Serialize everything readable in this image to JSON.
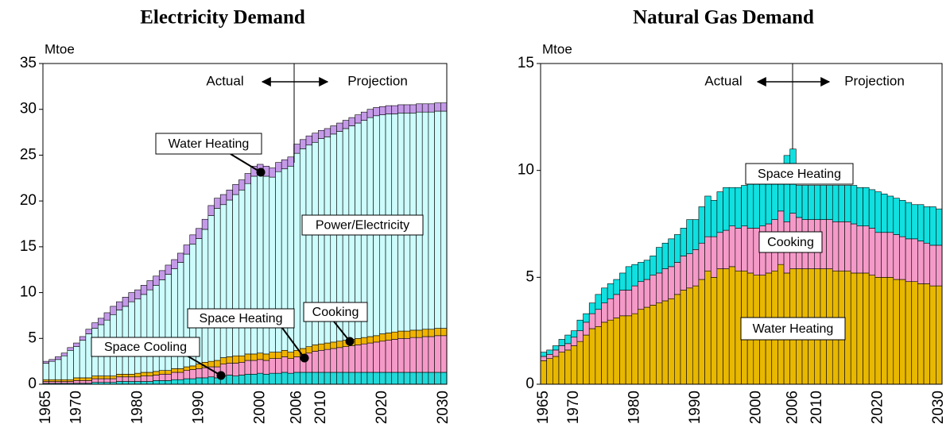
{
  "chart_data": [
    {
      "type": "bar",
      "stacked": true,
      "title": "Electricity Demand",
      "y_label": "Mtoe",
      "annotations": [
        "Actual",
        "Projection"
      ],
      "categories": [
        "1965",
        null,
        null,
        null,
        null,
        "1970",
        null,
        null,
        null,
        null,
        null,
        null,
        null,
        null,
        null,
        "1980",
        null,
        null,
        null,
        null,
        null,
        null,
        null,
        null,
        null,
        "1990",
        null,
        null,
        null,
        null,
        null,
        null,
        null,
        null,
        null,
        "2000",
        null,
        null,
        null,
        null,
        null,
        "2006",
        null,
        null,
        null,
        "2010",
        null,
        null,
        null,
        null,
        null,
        null,
        null,
        null,
        null,
        "2020",
        null,
        null,
        null,
        null,
        null,
        null,
        null,
        null,
        null,
        "2030"
      ],
      "ylim": [
        0,
        35
      ],
      "yticks": [
        0,
        5,
        10,
        15,
        20,
        25,
        30,
        35
      ],
      "series": [
        {
          "name": "Space Cooling",
          "color": "#22d8d8",
          "values": [
            0.1,
            0.1,
            0.1,
            0.1,
            0.1,
            0.1,
            0.1,
            0.1,
            0.2,
            0.2,
            0.2,
            0.2,
            0.3,
            0.3,
            0.3,
            0.3,
            0.3,
            0.3,
            0.4,
            0.4,
            0.4,
            0.5,
            0.5,
            0.6,
            0.6,
            0.7,
            0.7,
            0.8,
            0.7,
            0.9,
            1.0,
            0.9,
            1.0,
            1.1,
            1.1,
            1.2,
            1.1,
            1.2,
            1.2,
            1.3,
            1.2,
            1.3,
            1.3,
            1.3,
            1.3,
            1.3,
            1.3,
            1.3,
            1.3,
            1.3,
            1.3,
            1.3,
            1.3,
            1.3,
            1.3,
            1.3,
            1.3,
            1.3,
            1.3,
            1.3,
            1.3,
            1.3,
            1.3,
            1.3,
            1.3,
            1.3
          ]
        },
        {
          "name": "Space Heating",
          "color": "#f59ac8",
          "values": [
            0.2,
            0.2,
            0.2,
            0.2,
            0.2,
            0.3,
            0.3,
            0.3,
            0.4,
            0.4,
            0.4,
            0.4,
            0.5,
            0.5,
            0.5,
            0.5,
            0.6,
            0.6,
            0.6,
            0.7,
            0.7,
            0.8,
            0.8,
            0.9,
            1.0,
            1.0,
            1.1,
            1.1,
            1.2,
            1.3,
            1.3,
            1.4,
            1.4,
            1.5,
            1.5,
            1.5,
            1.5,
            1.6,
            1.6,
            1.7,
            1.6,
            1.7,
            1.9,
            2.1,
            2.3,
            2.4,
            2.5,
            2.6,
            2.7,
            2.8,
            2.9,
            3.0,
            3.1,
            3.2,
            3.3,
            3.4,
            3.5,
            3.6,
            3.7,
            3.7,
            3.8,
            3.8,
            3.9,
            3.9,
            4.0,
            4.0
          ]
        },
        {
          "name": "Cooking",
          "color": "#f0b400",
          "values": [
            0.2,
            0.2,
            0.2,
            0.2,
            0.2,
            0.3,
            0.3,
            0.3,
            0.3,
            0.3,
            0.3,
            0.3,
            0.3,
            0.3,
            0.3,
            0.4,
            0.4,
            0.4,
            0.4,
            0.4,
            0.4,
            0.4,
            0.4,
            0.4,
            0.4,
            0.5,
            0.6,
            0.6,
            0.7,
            0.7,
            0.7,
            0.8,
            0.7,
            0.7,
            0.7,
            0.7,
            0.7,
            0.7,
            0.7,
            0.7,
            0.7,
            0.7,
            0.7,
            0.7,
            0.7,
            0.7,
            0.7,
            0.7,
            0.7,
            0.7,
            0.7,
            0.7,
            0.7,
            0.7,
            0.7,
            0.8,
            0.8,
            0.8,
            0.8,
            0.8,
            0.8,
            0.8,
            0.8,
            0.8,
            0.8,
            0.8
          ]
        },
        {
          "name": "Power/Electricity",
          "color": "#ccfcfc",
          "values": [
            1.8,
            2.0,
            2.2,
            2.6,
            3.2,
            3.4,
            4.1,
            4.8,
            5.2,
            5.6,
            6.1,
            6.7,
            7.0,
            7.4,
            7.9,
            8.1,
            8.5,
            9.0,
            9.4,
            9.9,
            10.5,
            10.9,
            11.6,
            12.3,
            13.3,
            13.7,
            14.5,
            15.9,
            16.6,
            16.7,
            17.1,
            17.6,
            18.1,
            18.6,
            19.4,
            19.5,
            19.4,
            19.1,
            19.7,
            19.8,
            20.3,
            21.5,
            21.8,
            22.0,
            22.1,
            22.4,
            22.5,
            22.7,
            22.9,
            23.1,
            23.3,
            23.5,
            23.7,
            23.9,
            24.0,
            23.9,
            23.9,
            23.8,
            23.8,
            23.8,
            23.7,
            23.8,
            23.7,
            23.7,
            23.7,
            23.7
          ]
        },
        {
          "name": "Water Heating",
          "color": "#c49ae8",
          "values": [
            0.2,
            0.2,
            0.3,
            0.3,
            0.3,
            0.4,
            0.4,
            0.5,
            0.6,
            0.7,
            0.8,
            0.9,
            0.9,
            1.0,
            1.0,
            1.0,
            1.0,
            1.0,
            1.0,
            1.0,
            1.0,
            1.0,
            1.0,
            1.0,
            1.0,
            1.1,
            1.1,
            1.1,
            1.1,
            1.1,
            1.1,
            1.1,
            1.1,
            1.1,
            1.1,
            1.1,
            1.1,
            1.0,
            1.0,
            1.0,
            1.0,
            1.0,
            1.0,
            1.0,
            1.0,
            0.9,
            0.9,
            0.9,
            0.9,
            0.9,
            0.9,
            0.9,
            0.9,
            0.9,
            0.9,
            0.9,
            0.9,
            0.9,
            0.9,
            0.9,
            0.9,
            0.9,
            0.9,
            0.9,
            0.9,
            0.9
          ]
        }
      ]
    },
    {
      "type": "bar",
      "stacked": true,
      "title": "Natural Gas Demand",
      "y_label": "Mtoe",
      "annotations": [
        "Actual",
        "Projection"
      ],
      "categories": [
        "1965",
        null,
        null,
        null,
        null,
        "1970",
        null,
        null,
        null,
        null,
        null,
        null,
        null,
        null,
        null,
        "1980",
        null,
        null,
        null,
        null,
        null,
        null,
        null,
        null,
        null,
        "1990",
        null,
        null,
        null,
        null,
        null,
        null,
        null,
        null,
        null,
        "2000",
        null,
        null,
        null,
        null,
        null,
        "2006",
        null,
        null,
        null,
        "2010",
        null,
        null,
        null,
        null,
        null,
        null,
        null,
        null,
        null,
        "2020",
        null,
        null,
        null,
        null,
        null,
        null,
        null,
        null,
        null,
        "2030"
      ],
      "ylim": [
        0,
        15
      ],
      "yticks": [
        0,
        5,
        10,
        15
      ],
      "series": [
        {
          "name": "Water Heating",
          "color": "#e8b800",
          "values": [
            1.1,
            1.2,
            1.3,
            1.5,
            1.6,
            1.8,
            2.0,
            2.3,
            2.6,
            2.7,
            2.9,
            3.0,
            3.1,
            3.2,
            3.2,
            3.3,
            3.5,
            3.6,
            3.7,
            3.8,
            3.9,
            4.0,
            4.2,
            4.4,
            4.5,
            4.6,
            4.9,
            5.3,
            5.0,
            5.4,
            5.4,
            5.5,
            5.3,
            5.3,
            5.2,
            5.1,
            5.1,
            5.2,
            5.3,
            5.6,
            5.2,
            5.4,
            5.4,
            5.4,
            5.4,
            5.4,
            5.4,
            5.4,
            5.3,
            5.3,
            5.3,
            5.2,
            5.2,
            5.2,
            5.1,
            5.0,
            5.0,
            5.0,
            4.9,
            4.9,
            4.8,
            4.8,
            4.7,
            4.7,
            4.6,
            4.6
          ]
        },
        {
          "name": "Cooking",
          "color": "#f59ac8",
          "values": [
            0.2,
            0.2,
            0.3,
            0.3,
            0.3,
            0.4,
            0.5,
            0.6,
            0.7,
            0.8,
            0.9,
            1.0,
            1.1,
            1.2,
            1.2,
            1.3,
            1.3,
            1.3,
            1.4,
            1.4,
            1.5,
            1.5,
            1.5,
            1.6,
            1.6,
            1.7,
            1.7,
            1.6,
            1.9,
            1.7,
            1.8,
            1.9,
            2.0,
            2.1,
            2.1,
            2.2,
            2.3,
            2.3,
            2.4,
            2.5,
            2.4,
            2.6,
            2.4,
            2.3,
            2.3,
            2.3,
            2.3,
            2.3,
            2.3,
            2.3,
            2.3,
            2.3,
            2.2,
            2.2,
            2.2,
            2.1,
            2.1,
            2.1,
            2.1,
            2.0,
            2.0,
            2.0,
            2.0,
            1.9,
            1.9,
            1.9
          ]
        },
        {
          "name": "Space Heating",
          "color": "#10e0e0",
          "values": [
            0.2,
            0.2,
            0.2,
            0.3,
            0.4,
            0.3,
            0.5,
            0.4,
            0.5,
            0.7,
            0.7,
            0.7,
            0.7,
            0.8,
            1.1,
            1.0,
            0.9,
            0.9,
            0.9,
            1.2,
            1.2,
            1.3,
            1.3,
            1.3,
            1.6,
            1.4,
            1.7,
            1.9,
            1.7,
            1.9,
            2.0,
            1.8,
            1.9,
            1.9,
            2.2,
            2.3,
            2.4,
            2.5,
            2.6,
            2.2,
            3.1,
            3.0,
            1.5,
            1.6,
            1.6,
            1.6,
            1.6,
            1.6,
            1.7,
            1.7,
            1.7,
            1.8,
            1.8,
            1.8,
            1.8,
            1.9,
            1.8,
            1.7,
            1.7,
            1.7,
            1.7,
            1.6,
            1.7,
            1.7,
            1.8,
            1.7
          ]
        }
      ]
    }
  ]
}
